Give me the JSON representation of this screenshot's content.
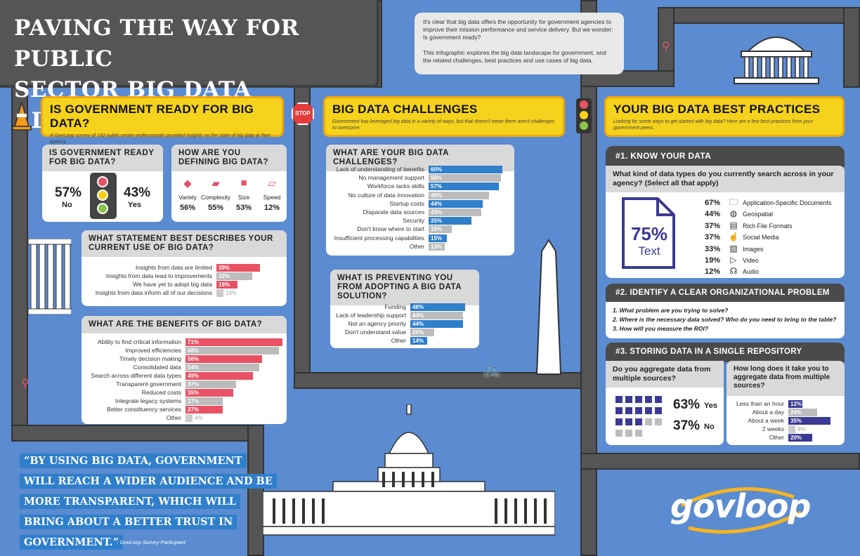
{
  "title": {
    "line1": "PAVING THE WAY FOR PUBLIC",
    "line2": "SECTOR BIG DATA ADOPTION"
  },
  "intro": {
    "p1": "It's clear that big data offers the opportunity for government agencies to improve their mission performance and service delivery. But we wonder: Is government ready?",
    "p2": "This infographic explores the big data landscape for government, and the related challenges, best practices and use cases of big data."
  },
  "stop_sign": "STOP",
  "ready": {
    "title": "IS GOVERNMENT READY FOR BIG DATA?",
    "subtitle": "A GovLoop survey of 152 public sector professionals provided insights on the state of big data at their agency.",
    "card_title": "IS GOVERNMENT READY FOR BIG DATA?",
    "no_pct": "57%",
    "no_label": "No",
    "yes_pct": "43%",
    "yes_label": "Yes"
  },
  "defining": {
    "title": "HOW ARE YOU DEFINING BIG DATA?",
    "items": [
      {
        "label": "Variety",
        "pct": "56%"
      },
      {
        "label": "Complexity",
        "pct": "55%"
      },
      {
        "label": "Size",
        "pct": "53%"
      },
      {
        "label": "Speed",
        "pct": "12%"
      }
    ]
  },
  "statement": {
    "title": "WHAT STATEMENT BEST DESCRIBES YOUR CURRENT USE OF BIG DATA?",
    "rows": [
      {
        "label": "Insights from data are limited",
        "pct": "39%",
        "value": 39,
        "color": "red"
      },
      {
        "label": "Insights from data lead to improvements",
        "pct": "32%",
        "value": 32,
        "color": "gry"
      },
      {
        "label": "We have yet to adopt big data",
        "pct": "19%",
        "value": 19,
        "color": "red"
      },
      {
        "label": "Insights from data inform all of our decisions",
        "pct": "10%",
        "value": 10,
        "color": "gry"
      }
    ]
  },
  "benefits": {
    "title": "WHAT ARE THE BENEFITS OF BIG DATA?",
    "rows": [
      {
        "label": "Ability to find critical information",
        "pct": "71%",
        "value": 71,
        "color": "red"
      },
      {
        "label": "Improved efficiencies",
        "pct": "68%",
        "value": 68,
        "color": "gry"
      },
      {
        "label": "Timely decision making",
        "pct": "56%",
        "value": 56,
        "color": "red"
      },
      {
        "label": "Consolidated data",
        "pct": "54%",
        "value": 54,
        "color": "gry"
      },
      {
        "label": "Search across different data types",
        "pct": "49%",
        "value": 49,
        "color": "red"
      },
      {
        "label": "Transparent government",
        "pct": "37%",
        "value": 37,
        "color": "gry"
      },
      {
        "label": "Reduced costs",
        "pct": "35%",
        "value": 35,
        "color": "red"
      },
      {
        "label": "Integrate legacy systems",
        "pct": "27%",
        "value": 27,
        "color": "gry"
      },
      {
        "label": "Better constituency services",
        "pct": "27%",
        "value": 27,
        "color": "red"
      },
      {
        "label": "Other",
        "pct": "4%",
        "value": 4,
        "color": "gry"
      }
    ]
  },
  "challenges": {
    "title": "BIG DATA CHALLENGES",
    "subtitle": "Government has leveraged big data in a variety of ways, but that doesn't mean there aren't challenges to overcome.",
    "card_title": "WHAT ARE YOUR BIG DATA CHALLENGES?",
    "rows": [
      {
        "label": "Lack of understanding of benefits",
        "pct": "60%",
        "value": 60,
        "color": "blu"
      },
      {
        "label": "No management support",
        "pct": "59%",
        "value": 59,
        "color": "gry"
      },
      {
        "label": "Workforce lacks skills",
        "pct": "57%",
        "value": 57,
        "color": "blu"
      },
      {
        "label": "No culture of data innovation",
        "pct": "49%",
        "value": 49,
        "color": "gry"
      },
      {
        "label": "Startup costs",
        "pct": "44%",
        "value": 44,
        "color": "blu"
      },
      {
        "label": "Disparate data sources",
        "pct": "43%",
        "value": 43,
        "color": "gry"
      },
      {
        "label": "Security",
        "pct": "35%",
        "value": 35,
        "color": "blu"
      },
      {
        "label": "Don't know where to start",
        "pct": "19%",
        "value": 19,
        "color": "gry"
      },
      {
        "label": "Insufficient processing capabilities",
        "pct": "15%",
        "value": 15,
        "color": "blu"
      },
      {
        "label": "Other",
        "pct": "13%",
        "value": 13,
        "color": "gry"
      }
    ]
  },
  "preventing": {
    "title": "WHAT IS PREVENTING YOU FROM ADOPTING A BIG DATA SOLUTION?",
    "rows": [
      {
        "label": "Funding",
        "pct": "46%",
        "value": 46,
        "color": "blu"
      },
      {
        "label": "Lack of leadership support",
        "pct": "44%",
        "value": 44,
        "color": "gry"
      },
      {
        "label": "Not an agency priority",
        "pct": "44%",
        "value": 44,
        "color": "blu"
      },
      {
        "label": "Don't understand value",
        "pct": "20%",
        "value": 20,
        "color": "gry"
      },
      {
        "label": "Other",
        "pct": "14%",
        "value": 14,
        "color": "blu"
      }
    ]
  },
  "practices": {
    "title": "YOUR BIG DATA BEST PRACTICES",
    "subtitle": "Looking for some ways to get started with big data? Here are a few best practices from your government peers.",
    "s1": "#1. KNOW YOUR DATA",
    "s1_question": "What kind of data types do you currently search across in your agency? (Select all that apply)",
    "text_pct": "75%",
    "text_label": "Text",
    "types": [
      {
        "pct": "67%",
        "label": "Application-Specific Documents",
        "icon": "folder-icon",
        "glyph": "🗀"
      },
      {
        "pct": "44%",
        "label": "Geospatial",
        "icon": "globe-icon",
        "glyph": "◍"
      },
      {
        "pct": "37%",
        "label": "Rich File Formats",
        "icon": "file-icon",
        "glyph": "▤"
      },
      {
        "pct": "37%",
        "label": "Social Media",
        "icon": "thumbs-up-icon",
        "glyph": "☝"
      },
      {
        "pct": "33%",
        "label": "Images",
        "icon": "image-icon",
        "glyph": "▨"
      },
      {
        "pct": "19%",
        "label": "Video",
        "icon": "video-icon",
        "glyph": "▷"
      },
      {
        "pct": "12%",
        "label": "Audio",
        "icon": "headphones-icon",
        "glyph": "☊"
      }
    ],
    "s2": "#2. IDENTIFY A CLEAR ORGANIZATIONAL PROBLEM",
    "s2_items": [
      "1. What problem are you trying to solve?",
      "2. Where is the necessary data solved? Who do you need to bring to the table?",
      "3. How will you measure the ROI?"
    ],
    "s3": "#3. STORING DATA IN A SINGLE REPOSITORY",
    "aggregate_q": "Do you aggregate data from multiple sources?",
    "agg_yes_pct": "63%",
    "agg_yes": "Yes",
    "agg_no_pct": "37%",
    "agg_no": "No",
    "howlong_q": "How long does it take you to aggregate data from multiple sources?",
    "howlong": [
      {
        "label": "Less than an hour",
        "pct": "12%",
        "value": 12,
        "color": "pur"
      },
      {
        "label": "About a day",
        "pct": "24%",
        "value": 24,
        "color": "gry"
      },
      {
        "label": "About a week",
        "pct": "35%",
        "value": 35,
        "color": "pur"
      },
      {
        "label": "2 weeks",
        "pct": "9%",
        "value": 9,
        "color": "gry"
      },
      {
        "label": "Other",
        "pct": "20%",
        "value": 20,
        "color": "pur"
      }
    ]
  },
  "quote": {
    "lines": [
      "“BY USING BIG DATA, GOVERNMENT",
      "WILL REACH A WIDER AUDIENCE AND BE",
      "MORE TRANSPARENT, WHICH WILL",
      "BRING ABOUT A BETTER TRUST IN",
      "GOVERNMENT.”"
    ],
    "attribution": "- GovLoop Survey Participant"
  },
  "logo": "govloop"
}
